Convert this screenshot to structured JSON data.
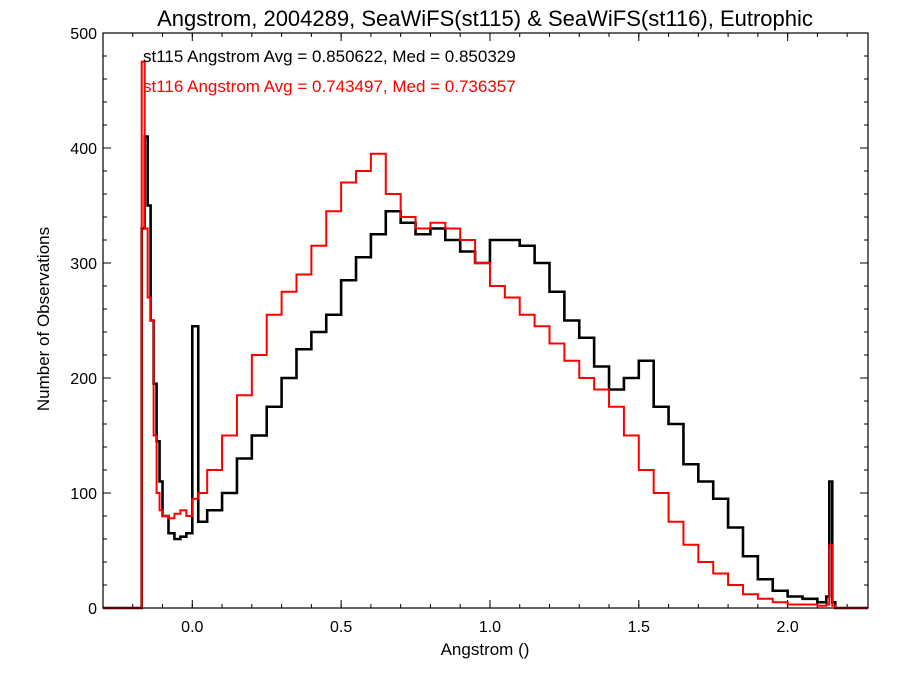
{
  "chart_data": {
    "type": "line",
    "title": "Angstrom, 2004289, SeaWiFS(st115) & SeaWiFS(st116), Eutrophic",
    "xlabel": "Angstrom ()",
    "ylabel": "Number of Observations",
    "xlim": [
      -0.3,
      2.27
    ],
    "ylim": [
      0,
      500
    ],
    "xticks": [
      0.0,
      0.5,
      1.0,
      1.5,
      2.0
    ],
    "xtick_labels": [
      "0.0",
      "0.5",
      "1.0",
      "1.5",
      "2.0"
    ],
    "yticks": [
      0,
      100,
      200,
      300,
      400,
      500
    ],
    "ytick_labels": [
      "0",
      "100",
      "200",
      "300",
      "400",
      "500"
    ],
    "grid": false,
    "legend": "top-left",
    "annotations": [
      {
        "text": "st115 Angstrom Avg = 0.850622, Med = 0.850329",
        "color": "#000000"
      },
      {
        "text": "st116 Angstrom Avg = 0.743497, Med = 0.736357",
        "color": "#ff0000"
      }
    ],
    "series": [
      {
        "color": "#000000",
        "x": [
          -0.17,
          -0.16,
          -0.15,
          -0.14,
          -0.13,
          -0.12,
          -0.11,
          -0.1,
          -0.08,
          -0.06,
          -0.04,
          -0.02,
          0.0,
          0.02,
          0.05,
          0.1,
          0.15,
          0.2,
          0.25,
          0.3,
          0.35,
          0.4,
          0.45,
          0.5,
          0.55,
          0.6,
          0.65,
          0.7,
          0.75,
          0.8,
          0.85,
          0.9,
          0.95,
          1.0,
          1.05,
          1.1,
          1.15,
          1.2,
          1.25,
          1.3,
          1.35,
          1.4,
          1.45,
          1.5,
          1.55,
          1.6,
          1.65,
          1.7,
          1.75,
          1.8,
          1.85,
          1.9,
          1.95,
          2.0,
          2.05,
          2.1,
          2.13,
          2.14,
          2.15,
          2.16
        ],
        "y": [
          330,
          410,
          350,
          250,
          195,
          145,
          110,
          80,
          65,
          60,
          62,
          65,
          245,
          75,
          85,
          100,
          130,
          150,
          175,
          200,
          225,
          240,
          255,
          285,
          305,
          325,
          345,
          335,
          325,
          330,
          320,
          310,
          300,
          320,
          320,
          315,
          300,
          275,
          250,
          235,
          210,
          190,
          200,
          215,
          175,
          160,
          125,
          110,
          95,
          70,
          45,
          25,
          15,
          10,
          8,
          5,
          10,
          110,
          5,
          0
        ]
      },
      {
        "color": "#ff0000",
        "x": [
          -0.17,
          -0.16,
          -0.15,
          -0.14,
          -0.13,
          -0.12,
          -0.11,
          -0.1,
          -0.08,
          -0.06,
          -0.04,
          -0.02,
          0.0,
          0.02,
          0.05,
          0.1,
          0.15,
          0.2,
          0.25,
          0.3,
          0.35,
          0.4,
          0.45,
          0.5,
          0.55,
          0.6,
          0.65,
          0.7,
          0.75,
          0.8,
          0.85,
          0.9,
          0.95,
          1.0,
          1.05,
          1.1,
          1.15,
          1.2,
          1.25,
          1.3,
          1.35,
          1.4,
          1.45,
          1.5,
          1.55,
          1.6,
          1.65,
          1.7,
          1.75,
          1.8,
          1.85,
          1.9,
          1.95,
          2.0,
          2.05,
          2.1,
          2.13,
          2.14,
          2.15,
          2.16
        ],
        "y": [
          475,
          330,
          270,
          250,
          150,
          100,
          85,
          80,
          78,
          82,
          85,
          80,
          95,
          100,
          120,
          150,
          185,
          220,
          255,
          275,
          290,
          315,
          345,
          370,
          380,
          395,
          360,
          340,
          330,
          335,
          330,
          320,
          300,
          280,
          270,
          255,
          245,
          230,
          215,
          200,
          190,
          175,
          150,
          120,
          100,
          75,
          55,
          40,
          30,
          20,
          12,
          8,
          5,
          3,
          3,
          2,
          3,
          55,
          2,
          0
        ]
      }
    ]
  }
}
